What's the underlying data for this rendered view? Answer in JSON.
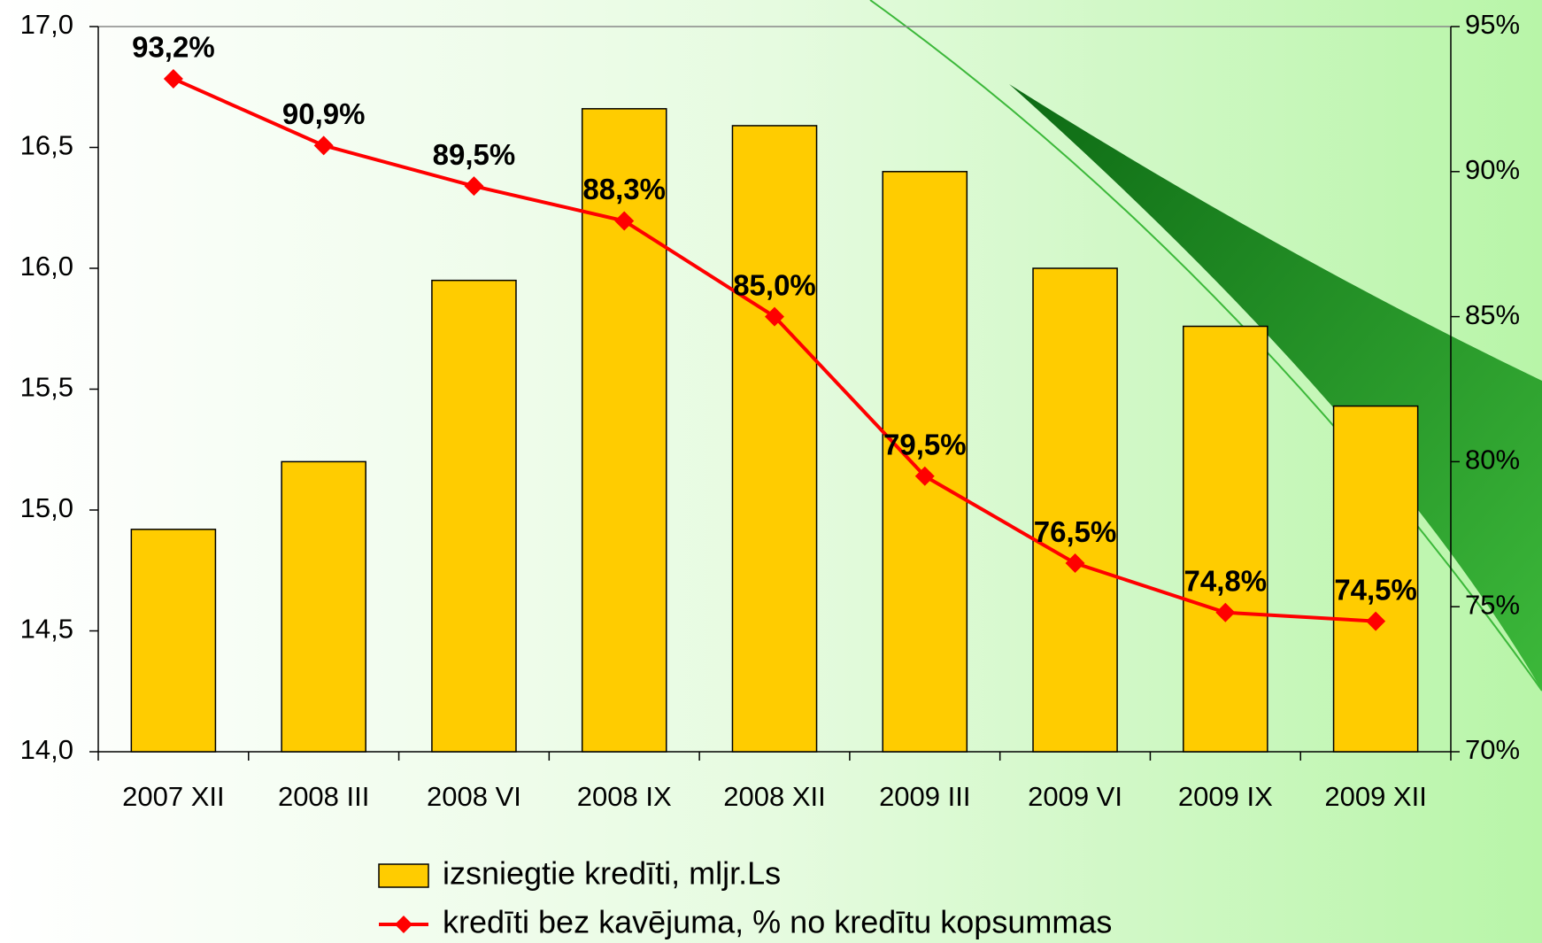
{
  "chart_data": {
    "type": "bar_line",
    "categories": [
      "2007 XII",
      "2008 III",
      "2008 VI",
      "2008 IX",
      "2008 XII",
      "2009 III",
      "2009 VI",
      "2009 IX",
      "2009 XII"
    ],
    "series": [
      {
        "name": "izsniegtie kredīti, mljr.Ls",
        "type": "bar",
        "color": "#ffcc00",
        "values": [
          14.92,
          15.2,
          15.95,
          16.66,
          16.59,
          16.4,
          16.0,
          15.76,
          15.43
        ]
      },
      {
        "name": "kredīti bez kavējuma, % no kredītu kopsummas",
        "type": "line",
        "color": "#ff0000",
        "axis": "y2",
        "values": [
          93.2,
          90.9,
          89.5,
          88.3,
          85.0,
          79.5,
          76.5,
          74.8,
          74.5
        ],
        "value_labels": [
          "93,2%",
          "90,9%",
          "89,5%",
          "88,3%",
          "85,0%",
          "79,5%",
          "76,5%",
          "74,8%",
          "74,5%"
        ]
      }
    ],
    "ylim": [
      14,
      17
    ],
    "yticks": [
      {
        "value": 14,
        "label": "14,0"
      },
      {
        "value": 14.5,
        "label": "14,5"
      },
      {
        "value": 15,
        "label": "15,0"
      },
      {
        "value": 15.5,
        "label": "15,5"
      },
      {
        "value": 16,
        "label": "16,0"
      },
      {
        "value": 16.5,
        "label": "16,5"
      },
      {
        "value": 17,
        "label": "17,0"
      }
    ],
    "y2lim": [
      70,
      95
    ],
    "y2ticks": [
      {
        "value": 70,
        "label": "70%"
      },
      {
        "value": 75,
        "label": "75%"
      },
      {
        "value": 80,
        "label": "80%"
      },
      {
        "value": 85,
        "label": "85%"
      },
      {
        "value": 90,
        "label": "90%"
      },
      {
        "value": 95,
        "label": "95%"
      }
    ],
    "legend": "bottom"
  }
}
